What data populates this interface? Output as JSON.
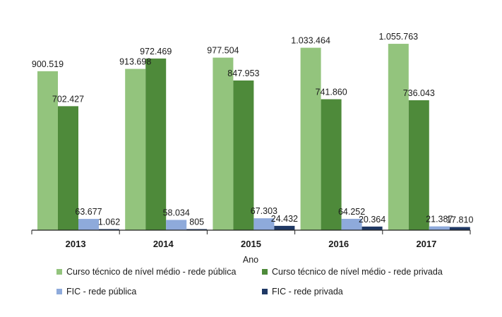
{
  "chart_data": {
    "type": "bar",
    "title": "",
    "xlabel": "Ano",
    "ylabel": "",
    "ylim": [
      0,
      1100000
    ],
    "grid": false,
    "legend_position": "bottom",
    "categories": [
      "2013",
      "2014",
      "2015",
      "2016",
      "2017"
    ],
    "series": [
      {
        "name": "Curso técnico de nível médio - rede pública",
        "color": "#93c47d",
        "values": [
          900519,
          913698,
          977504,
          1033464,
          1055763
        ],
        "labels": [
          "900.519",
          "913.698",
          "977.504",
          "1.033.464",
          "1.055.763"
        ]
      },
      {
        "name": "Curso técnico de nível médio - rede privada",
        "color": "#4e8a3a",
        "values": [
          702427,
          972469,
          847953,
          741860,
          736043
        ],
        "labels": [
          "702.427",
          "972.469",
          "847.953",
          "741.860",
          "736.043"
        ]
      },
      {
        "name": "FIC - rede pública",
        "color": "#8eaadb",
        "values": [
          63677,
          58034,
          67303,
          64252,
          21387
        ],
        "labels": [
          "63.677",
          "58.034",
          "67.303",
          "64.252",
          "21.387"
        ]
      },
      {
        "name": "FIC - rede privada",
        "color": "#1f3864",
        "values": [
          1062,
          805,
          24432,
          20364,
          17810
        ],
        "labels": [
          "1.062",
          "805",
          "24.432",
          "20.364",
          "17.810"
        ]
      }
    ]
  }
}
